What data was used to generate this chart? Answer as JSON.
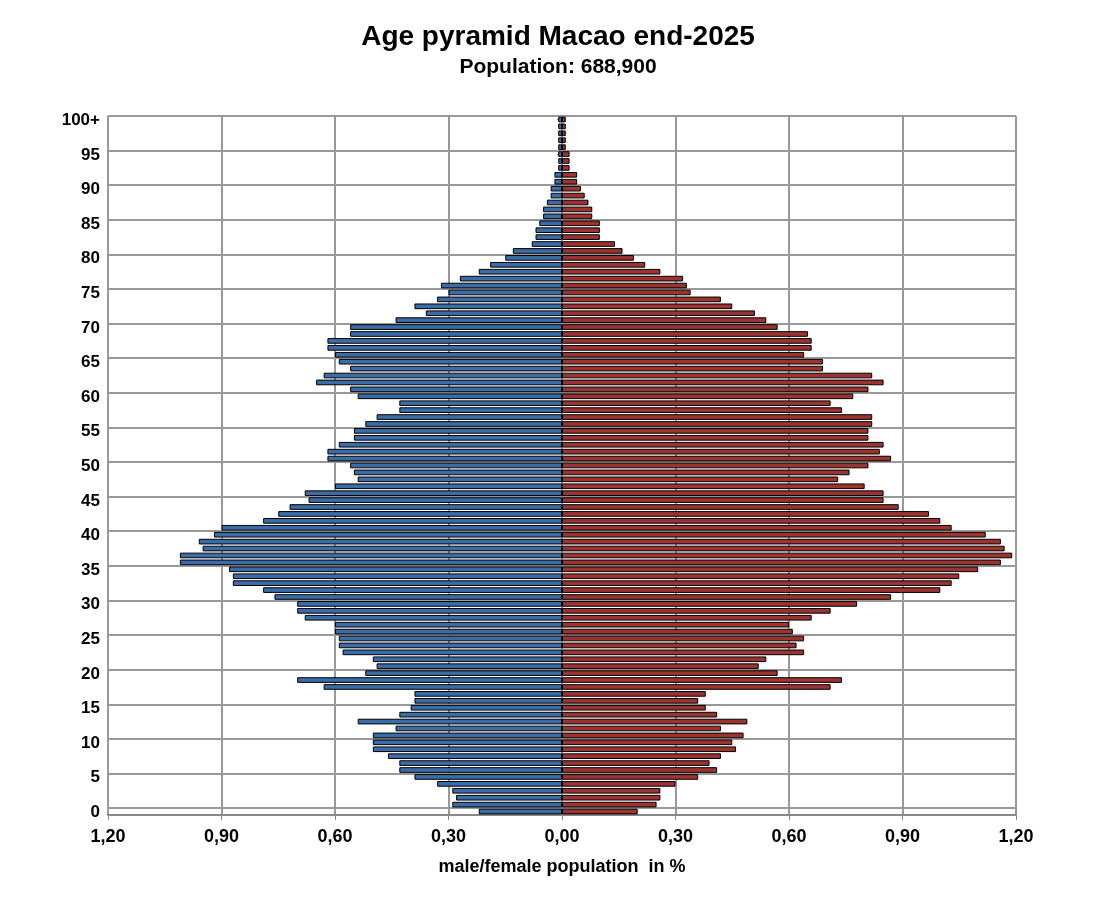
{
  "chart_data": {
    "type": "bar",
    "orientation": "horizontal",
    "stacked": true,
    "title": "Age pyramid Macao end-2025",
    "subtitle": "Population: 688,900",
    "xlabel": "male/female population  in %",
    "categories": [
      "100+",
      null,
      null,
      null,
      null,
      "95",
      null,
      null,
      null,
      null,
      "90",
      null,
      null,
      null,
      null,
      "85",
      null,
      null,
      null,
      null,
      "80",
      null,
      null,
      null,
      null,
      "75",
      null,
      null,
      null,
      null,
      "70",
      null,
      null,
      null,
      null,
      "65",
      null,
      null,
      null,
      null,
      "60",
      null,
      null,
      null,
      null,
      "55",
      null,
      null,
      null,
      null,
      "50",
      null,
      null,
      null,
      null,
      "45",
      null,
      null,
      null,
      null,
      "40",
      null,
      null,
      null,
      null,
      "35",
      null,
      null,
      null,
      null,
      "30",
      null,
      null,
      null,
      null,
      "25",
      null,
      null,
      null,
      null,
      "20",
      null,
      null,
      null,
      null,
      "15",
      null,
      null,
      null,
      null,
      "10",
      null,
      null,
      null,
      null,
      "5",
      null,
      null,
      null,
      null,
      "0"
    ],
    "series": [
      {
        "color": "#3a6ca8",
        "values": [
          -0.01,
          -0.01,
          -0.01,
          -0.01,
          -0.01,
          -0.01,
          -0.01,
          -0.01,
          -0.02,
          -0.02,
          -0.03,
          -0.03,
          -0.04,
          -0.05,
          -0.05,
          -0.06,
          -0.07,
          -0.07,
          -0.08,
          -0.13,
          -0.15,
          -0.19,
          -0.22,
          -0.27,
          -0.32,
          -0.3,
          -0.33,
          -0.39,
          -0.36,
          -0.44,
          -0.56,
          -0.56,
          -0.62,
          -0.62,
          -0.6,
          -0.59,
          -0.56,
          -0.63,
          -0.65,
          -0.56,
          -0.54,
          -0.43,
          -0.43,
          -0.49,
          -0.52,
          -0.55,
          -0.55,
          -0.59,
          -0.62,
          -0.62,
          -0.56,
          -0.55,
          -0.54,
          -0.6,
          -0.68,
          -0.67,
          -0.72,
          -0.75,
          -0.79,
          -0.9,
          -0.92,
          -0.96,
          -0.95,
          -1.01,
          -1.01,
          -0.88,
          -0.87,
          -0.87,
          -0.79,
          -0.76,
          -0.7,
          -0.7,
          -0.68,
          -0.6,
          -0.6,
          -0.59,
          -0.59,
          -0.58,
          -0.5,
          -0.49,
          -0.52,
          -0.7,
          -0.63,
          -0.39,
          -0.39,
          -0.4,
          -0.43,
          -0.54,
          -0.44,
          -0.5,
          -0.5,
          -0.5,
          -0.46,
          -0.43,
          -0.43,
          -0.39,
          -0.33,
          -0.29,
          -0.28,
          -0.29,
          -0.22
        ]
      },
      {
        "color": "#9c3330",
        "values": [
          0.01,
          0.01,
          0.01,
          0.01,
          0.01,
          0.02,
          0.02,
          0.02,
          0.04,
          0.04,
          0.05,
          0.06,
          0.07,
          0.08,
          0.08,
          0.1,
          0.1,
          0.1,
          0.14,
          0.16,
          0.19,
          0.22,
          0.26,
          0.32,
          0.33,
          0.34,
          0.42,
          0.45,
          0.51,
          0.54,
          0.57,
          0.65,
          0.66,
          0.66,
          0.64,
          0.69,
          0.69,
          0.82,
          0.85,
          0.81,
          0.77,
          0.71,
          0.74,
          0.82,
          0.82,
          0.81,
          0.81,
          0.85,
          0.84,
          0.87,
          0.81,
          0.76,
          0.73,
          0.8,
          0.85,
          0.85,
          0.89,
          0.97,
          1.0,
          1.03,
          1.12,
          1.16,
          1.17,
          1.19,
          1.16,
          1.1,
          1.05,
          1.03,
          1.0,
          0.87,
          0.78,
          0.71,
          0.66,
          0.6,
          0.61,
          0.64,
          0.62,
          0.64,
          0.54,
          0.52,
          0.57,
          0.74,
          0.71,
          0.38,
          0.36,
          0.38,
          0.41,
          0.49,
          0.42,
          0.48,
          0.45,
          0.46,
          0.42,
          0.39,
          0.41,
          0.36,
          0.3,
          0.26,
          0.26,
          0.25,
          0.2
        ]
      }
    ],
    "xlim": [
      -1.2,
      1.2
    ],
    "xticks": [
      {
        "value": -1.2,
        "label": "1,20"
      },
      {
        "value": -0.9,
        "label": "0,90"
      },
      {
        "value": -0.6,
        "label": "0,60"
      },
      {
        "value": -0.3,
        "label": "0,30"
      },
      {
        "value": 0,
        "label": "0,00"
      },
      {
        "value": 0.3,
        "label": "0,30"
      },
      {
        "value": 0.6,
        "label": "0,60"
      },
      {
        "value": 0.9,
        "label": "0,90"
      },
      {
        "value": 1.2,
        "label": "1,20"
      }
    ],
    "grid": true
  }
}
